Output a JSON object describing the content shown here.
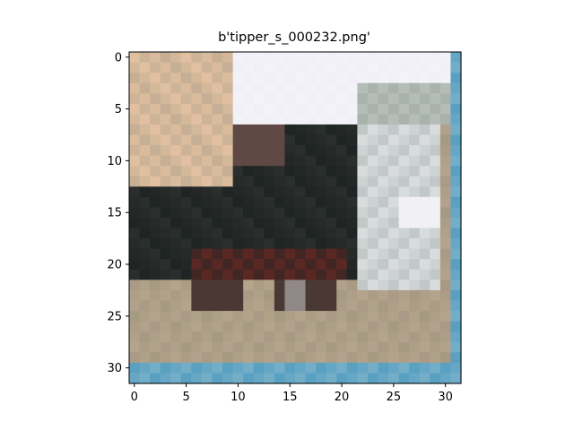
{
  "figure": {
    "title": "b'tipper_s_000232.png'"
  },
  "axes": {
    "x_ticks": [
      "0",
      "5",
      "10",
      "15",
      "20",
      "25",
      "30"
    ],
    "y_ticks": [
      "0",
      "5",
      "10",
      "15",
      "20",
      "25",
      "30"
    ],
    "x_range": [
      -0.5,
      31.5
    ],
    "y_range": [
      31.5,
      -0.5
    ]
  },
  "image": {
    "description_colors": {
      "sky": "#f2f2f8",
      "truck_body": "#1f2424",
      "truck_cab": "#d8dcdc",
      "ground": "#b4a48c",
      "left_building": "#e0c0a0",
      "frame": "#5aa0c0"
    }
  }
}
